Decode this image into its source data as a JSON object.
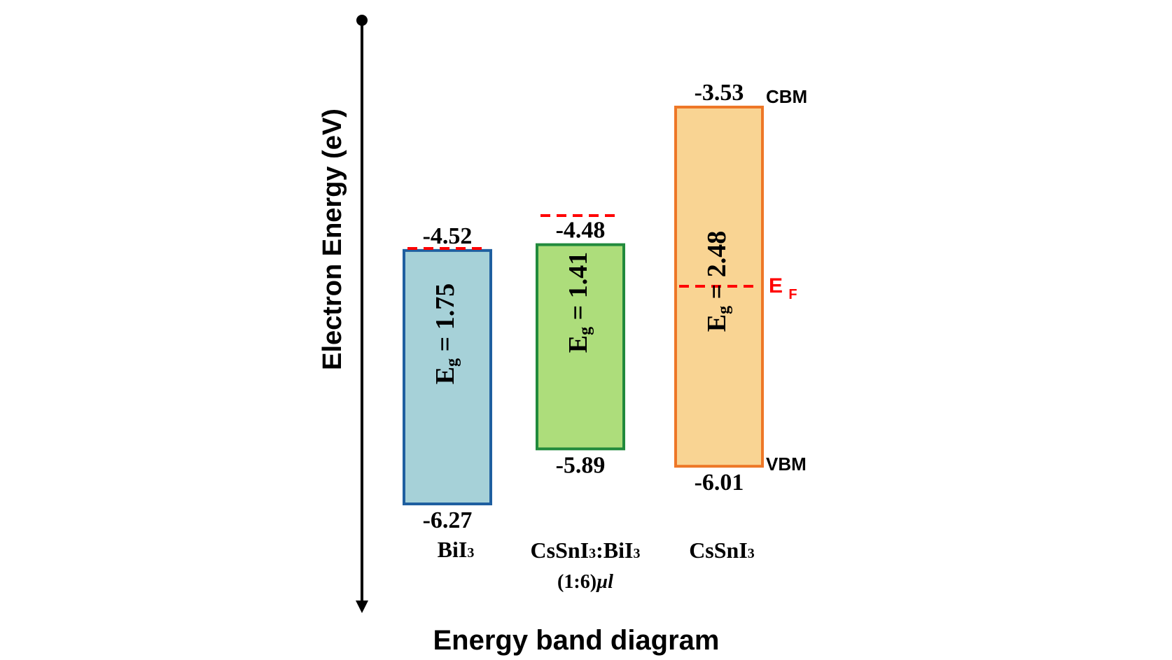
{
  "diagram": {
    "title": "Energy band diagram",
    "axis_label": "Electron Energy (eV)",
    "cbm_label": "CBM",
    "vbm_label": "VBM",
    "fermi_label": {
      "main": "E",
      "sub": "F"
    },
    "colors": {
      "axis": "#000000",
      "fermi": "#ff0000",
      "text": "#000000"
    }
  },
  "chart_data": {
    "type": "diagram",
    "title": "Energy band diagram",
    "ylabel": "Electron Energy (eV)",
    "materials": [
      {
        "id": "bii3",
        "name_main": "BiI",
        "name_sub": "3",
        "name_line2": "",
        "cbm": -4.52,
        "vbm": -6.27,
        "cbm_label": "-4.52",
        "vbm_label": "-6.27",
        "eg_prefix": "E",
        "eg_sub": "g",
        "eg_text": " = 1.75",
        "fill": "#a6d1d8",
        "stroke": "#1f5fa0"
      },
      {
        "id": "mix",
        "name_main": "CsSnI",
        "name_sub": "3",
        "name_main2": ":BiI",
        "name_sub2": "3",
        "name_line2": "(1:6)",
        "name_line2_italic": "µl",
        "cbm": -4.48,
        "vbm": -5.89,
        "cbm_label": "-4.48",
        "vbm_label": "-5.89",
        "eg_prefix": "E",
        "eg_sub": "g",
        "eg_text": " = 1.41",
        "fill": "#addd7b",
        "stroke": "#218a3c"
      },
      {
        "id": "cssni3",
        "name_main": "CsSnI",
        "name_sub": "3",
        "name_line2": "",
        "cbm": -3.53,
        "vbm": -6.01,
        "cbm_label": "-3.53",
        "vbm_label": "-6.01",
        "eg_prefix": "E",
        "eg_sub": "g",
        "eg_text": " = 2.48",
        "fill": "#f9d493",
        "stroke": "#ee7727"
      }
    ]
  }
}
